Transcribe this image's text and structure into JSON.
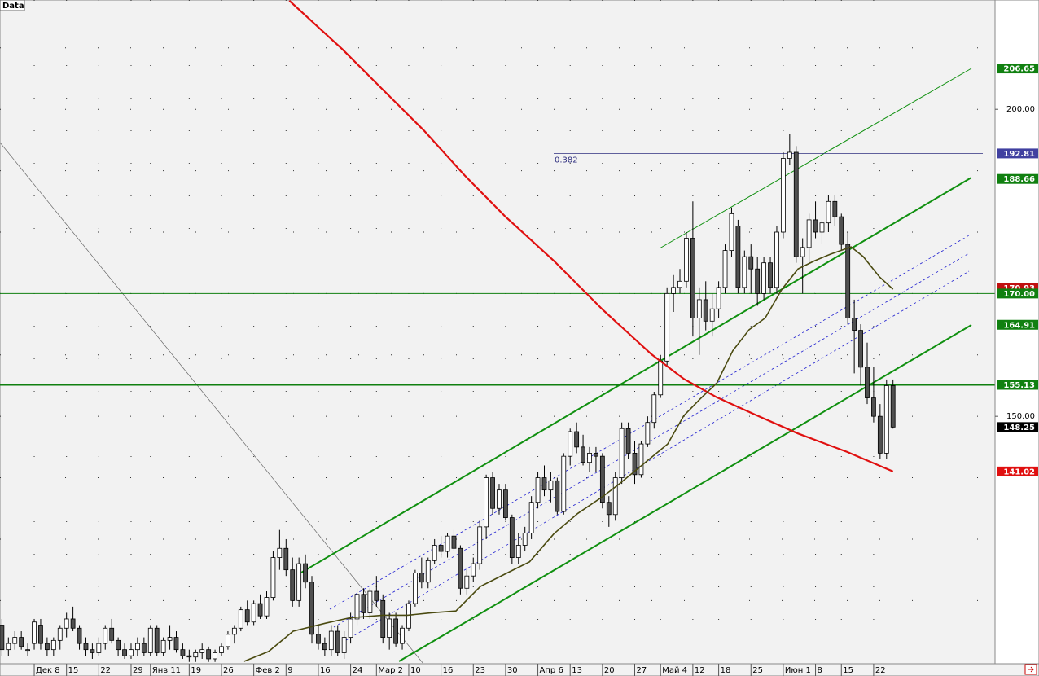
{
  "chart_data": {
    "type": "candlestick",
    "title": "Data",
    "xlim": [
      -5.3,
      148.8
    ],
    "ylim": [
      109.7,
      217.8
    ],
    "xticks": [
      {
        "value": 0,
        "label": "Дек 8"
      },
      {
        "value": 5,
        "label": "15"
      },
      {
        "value": 10,
        "label": "22"
      },
      {
        "value": 15,
        "label": "29"
      },
      {
        "value": 18,
        "label": "Янв 11"
      },
      {
        "value": 24,
        "label": "19"
      },
      {
        "value": 29,
        "label": "26"
      },
      {
        "value": 34,
        "label": "Фев 2"
      },
      {
        "value": 39,
        "label": "9"
      },
      {
        "value": 44,
        "label": "16"
      },
      {
        "value": 49,
        "label": "24"
      },
      {
        "value": 53,
        "label": "Мар 2"
      },
      {
        "value": 58,
        "label": "10"
      },
      {
        "value": 63,
        "label": "16"
      },
      {
        "value": 68,
        "label": "23"
      },
      {
        "value": 73,
        "label": "30"
      },
      {
        "value": 78,
        "label": "Апр 6"
      },
      {
        "value": 83,
        "label": "13"
      },
      {
        "value": 88,
        "label": "20"
      },
      {
        "value": 93,
        "label": "27"
      },
      {
        "value": 97,
        "label": "Май 4"
      },
      {
        "value": 102,
        "label": "12"
      },
      {
        "value": 106,
        "label": "18"
      },
      {
        "value": 111,
        "label": "25"
      },
      {
        "value": 116,
        "label": "Июн 1"
      },
      {
        "value": 121,
        "label": "8"
      },
      {
        "value": 125,
        "label": "15"
      },
      {
        "value": 130,
        "label": "22"
      }
    ],
    "yticks": [
      {
        "value": 150,
        "label": "150.00"
      },
      {
        "value": 200,
        "label": "200.00"
      }
    ],
    "ygrid": [
      120,
      130,
      140,
      150,
      160,
      170,
      180,
      190,
      200,
      210
    ],
    "grid": true,
    "up_color": "#ffffff",
    "down_color": "#505050",
    "candles": [
      [
        -5,
        116,
        117,
        111,
        112
      ],
      [
        -4,
        112,
        114,
        111,
        113
      ],
      [
        -3,
        113,
        115,
        112,
        114
      ],
      [
        -2,
        114,
        115,
        112,
        112.5
      ],
      [
        -1,
        112,
        113,
        111,
        112
      ],
      [
        0,
        113,
        117,
        112,
        116.5
      ],
      [
        1,
        116,
        117,
        112,
        113
      ],
      [
        2,
        113,
        114,
        111,
        112
      ],
      [
        3,
        112,
        114,
        111,
        113.5
      ],
      [
        4,
        113.5,
        116,
        112,
        115.5
      ],
      [
        5,
        115.5,
        118,
        114,
        117
      ],
      [
        6,
        117,
        119,
        115,
        115.5
      ],
      [
        7,
        115.5,
        116,
        112,
        113
      ],
      [
        8,
        113,
        114,
        111,
        112
      ],
      [
        9,
        112,
        113,
        110.5,
        111.5
      ],
      [
        10,
        111.5,
        114,
        111,
        113
      ],
      [
        11,
        113,
        116,
        112,
        115.5
      ],
      [
        12,
        115.5,
        117,
        113,
        113.5
      ],
      [
        13,
        113.5,
        114,
        111,
        112
      ],
      [
        14,
        112,
        113,
        110.5,
        111
      ],
      [
        15,
        111,
        113,
        110.5,
        112
      ],
      [
        16,
        112,
        114,
        111,
        113
      ],
      [
        17,
        113,
        114,
        111,
        111.5
      ],
      [
        18,
        111.5,
        116,
        111,
        115.5
      ],
      [
        19,
        115.5,
        116,
        111,
        111.5
      ],
      [
        20,
        111.5,
        114,
        111,
        113.5
      ],
      [
        21,
        113.5,
        116,
        112,
        114
      ],
      [
        22,
        114,
        115,
        111.5,
        112
      ],
      [
        23,
        112,
        113,
        110.5,
        111
      ],
      [
        24,
        111,
        112,
        110,
        110.8
      ],
      [
        25,
        110.8,
        112,
        110,
        111.5
      ],
      [
        26,
        111.5,
        113,
        110.5,
        112
      ],
      [
        27,
        112,
        112.5,
        110,
        110.5
      ],
      [
        28,
        110.5,
        112,
        110,
        111.5
      ],
      [
        29,
        111.5,
        113,
        111,
        112.5
      ],
      [
        30,
        112.5,
        115,
        112,
        114.5
      ],
      [
        31,
        114.5,
        116,
        113,
        115.5
      ],
      [
        32,
        115.5,
        119,
        115,
        118.5
      ],
      [
        33,
        118.5,
        120,
        116,
        116.5
      ],
      [
        34,
        116.5,
        120,
        116,
        119.5
      ],
      [
        35,
        119.5,
        121,
        117,
        117.5
      ],
      [
        36,
        117.5,
        121.5,
        117,
        120.5
      ],
      [
        37,
        120.5,
        128,
        120,
        127
      ],
      [
        38,
        127,
        131.5,
        125,
        128.5
      ],
      [
        39,
        128.5,
        130,
        124,
        125
      ],
      [
        40,
        125,
        127,
        119,
        120
      ],
      [
        41,
        120,
        127,
        119,
        126
      ],
      [
        42,
        126,
        127.5,
        122,
        123
      ],
      [
        43,
        123,
        124,
        113,
        114.5
      ],
      [
        44,
        114.5,
        116,
        112,
        113
      ],
      [
        45,
        113,
        114,
        111,
        112
      ],
      [
        46,
        112,
        116,
        111,
        115
      ],
      [
        47,
        115,
        116,
        111,
        111.5
      ],
      [
        48,
        111.5,
        115,
        110.5,
        114
      ],
      [
        49,
        114,
        118,
        113,
        117
      ],
      [
        50,
        117,
        122,
        116,
        121
      ],
      [
        51,
        121,
        122,
        117,
        118
      ],
      [
        52,
        118,
        122,
        117,
        121.5
      ],
      [
        53,
        121.5,
        124,
        119,
        120
      ],
      [
        54,
        120,
        121,
        113,
        114
      ],
      [
        55,
        114,
        118,
        112,
        117
      ],
      [
        56,
        117,
        118,
        112.5,
        113
      ],
      [
        57,
        113,
        116,
        112,
        115.5
      ],
      [
        58,
        115.5,
        120,
        115,
        119.5
      ],
      [
        59,
        119.5,
        125,
        119,
        124.5
      ],
      [
        60,
        124.5,
        127,
        122,
        123
      ],
      [
        61,
        123,
        127,
        122,
        126.5
      ],
      [
        62,
        126.5,
        130,
        126,
        129
      ],
      [
        63,
        129,
        130.5,
        127,
        128
      ],
      [
        64,
        128,
        131,
        127,
        130.5
      ],
      [
        65,
        130.5,
        131.5,
        128,
        128.5
      ],
      [
        66,
        128.5,
        129,
        121,
        122
      ],
      [
        67,
        122,
        125,
        121,
        124
      ],
      [
        68,
        124,
        127,
        123,
        126
      ],
      [
        69,
        126,
        133,
        125,
        132
      ],
      [
        70,
        132,
        140.5,
        130,
        140
      ],
      [
        71,
        140,
        141,
        134,
        135
      ],
      [
        72,
        135,
        139,
        134,
        138
      ],
      [
        73,
        138,
        139,
        133,
        133.5
      ],
      [
        74,
        133.5,
        134,
        126,
        127
      ],
      [
        75,
        127,
        131,
        126,
        129
      ],
      [
        76,
        129,
        132,
        128,
        131
      ],
      [
        77,
        131,
        137,
        130,
        136
      ],
      [
        78,
        136,
        141,
        135,
        140
      ],
      [
        79,
        140,
        142,
        137,
        138
      ],
      [
        80,
        138,
        141,
        136,
        139.5
      ],
      [
        81,
        139.5,
        140,
        134,
        134.5
      ],
      [
        82,
        134.5,
        144,
        134,
        143.5
      ],
      [
        83,
        143.5,
        148,
        142,
        147.5
      ],
      [
        84,
        147.5,
        149,
        144,
        145
      ],
      [
        85,
        145,
        147,
        142,
        142.5
      ],
      [
        86,
        142.5,
        145,
        141,
        144
      ],
      [
        87,
        144,
        145,
        141,
        143.5
      ],
      [
        88,
        143.5,
        144,
        135,
        136
      ],
      [
        89,
        136,
        137,
        132,
        134
      ],
      [
        90,
        134,
        141,
        133,
        140
      ],
      [
        91,
        140,
        149,
        139,
        148
      ],
      [
        92,
        148,
        149,
        143,
        144
      ],
      [
        93,
        144,
        146,
        139,
        140.5
      ],
      [
        94,
        140.5,
        146,
        140,
        145.5
      ],
      [
        95,
        145.5,
        150,
        145,
        149
      ],
      [
        96,
        149,
        154,
        148,
        153.5
      ],
      [
        97,
        153.5,
        160,
        153,
        159
      ],
      [
        98,
        159,
        171,
        158,
        170
      ],
      [
        99,
        170,
        173,
        167,
        171
      ],
      [
        100,
        171,
        174,
        170,
        172
      ],
      [
        101,
        172,
        180,
        171,
        179
      ],
      [
        102,
        179,
        185,
        163,
        166
      ],
      [
        103,
        166,
        171,
        160,
        169
      ],
      [
        104,
        169,
        172,
        164,
        165.5
      ],
      [
        105,
        165.5,
        170,
        163,
        167.5
      ],
      [
        106,
        167.5,
        172,
        166,
        171
      ],
      [
        107,
        171,
        178,
        170,
        177
      ],
      [
        108,
        177,
        184,
        176,
        183
      ],
      [
        109,
        181,
        182,
        170,
        171
      ],
      [
        110,
        171,
        177,
        170,
        176
      ],
      [
        111,
        176,
        178,
        170,
        174
      ],
      [
        112,
        174,
        176,
        168,
        170
      ],
      [
        113,
        170,
        176,
        169,
        175
      ],
      [
        114,
        175,
        176,
        170,
        171
      ],
      [
        115,
        171,
        181,
        170,
        180
      ],
      [
        116,
        180,
        193,
        179,
        192
      ],
      [
        117,
        192,
        196,
        191,
        193
      ],
      [
        118,
        193,
        194,
        175,
        176
      ],
      [
        119,
        176,
        179,
        170,
        177.5
      ],
      [
        120,
        177.5,
        183,
        175,
        182
      ],
      [
        121,
        182,
        185,
        179,
        180
      ],
      [
        122,
        180,
        182,
        178,
        181.5
      ],
      [
        123,
        181.5,
        186,
        180,
        185
      ],
      [
        124,
        185,
        186,
        181,
        182.5
      ],
      [
        125,
        182.5,
        183,
        177,
        178
      ],
      [
        126,
        178,
        180,
        165,
        166
      ],
      [
        127,
        166,
        169,
        157,
        164
      ],
      [
        128,
        164,
        165,
        155,
        158
      ],
      [
        129,
        158,
        162,
        152,
        153
      ],
      [
        130,
        153,
        158,
        149,
        150
      ],
      [
        131,
        150,
        152,
        143,
        144
      ],
      [
        132,
        144,
        156,
        143,
        155
      ],
      [
        133,
        155,
        156,
        148,
        148.25
      ]
    ],
    "series": [
      {
        "color": "#e01010",
        "width": 2.2,
        "x": [
          39.5,
          47.7,
          54,
          60.3,
          66.6,
          72.9,
          80.5,
          88,
          95.6,
          100.6,
          105.7,
          112,
          118.3,
          125.9,
          133
        ],
        "values": [
          217.7,
          209.8,
          203.2,
          196.6,
          189.3,
          182.6,
          175.3,
          167.4,
          160.1,
          156.1,
          153.1,
          150.1,
          147.2,
          144.2,
          141.02
        ]
      },
      {
        "color": "#4a4a10",
        "width": 1.6,
        "x": [
          32.5,
          36.3,
          40.1,
          45.1,
          48.9,
          54,
          57.8,
          61.5,
          65.3,
          69.1,
          72.9,
          76.7,
          80.5,
          84.2,
          88,
          90.5,
          94.3,
          98.1,
          100.6,
          103.1,
          105.7,
          108.2,
          110.7,
          113.2,
          115.8,
          118.3,
          120.8,
          123.3,
          126.5,
          128.4,
          130.9,
          133
        ],
        "values": [
          110.1,
          111.7,
          115,
          116.3,
          117.2,
          117.6,
          117.6,
          118,
          118.3,
          122.3,
          124.3,
          126.3,
          130.9,
          134.2,
          136.9,
          138.9,
          142.2,
          145.5,
          150.1,
          152.8,
          155.4,
          160.7,
          164.1,
          166,
          170.7,
          174,
          175.3,
          176.4,
          177.6,
          176,
          172.7,
          170.7
        ]
      }
    ],
    "fib": {
      "label": "0.382",
      "value": 192.81,
      "color": "#303080"
    },
    "price_tags": [
      {
        "value": 206.65,
        "label": "206.65",
        "color": "#108010"
      },
      {
        "value": 192.81,
        "label": "192.81",
        "color": "#4040a0"
      },
      {
        "value": 188.66,
        "label": "188.66",
        "color": "#108010"
      },
      {
        "value": 170.93,
        "label": "170.93",
        "color": "#c01010"
      },
      {
        "value": 170,
        "label": "170.00",
        "color": "#108010",
        "hline": true
      },
      {
        "value": 164.91,
        "label": "164.91",
        "color": "#108010"
      },
      {
        "value": 155.13,
        "label": "155.13",
        "color": "#108010",
        "hline": true
      },
      {
        "value": 148.25,
        "label": "148.25",
        "color": "#000000"
      },
      {
        "value": 141.02,
        "label": "141.02",
        "color": "#e01010"
      }
    ]
  }
}
